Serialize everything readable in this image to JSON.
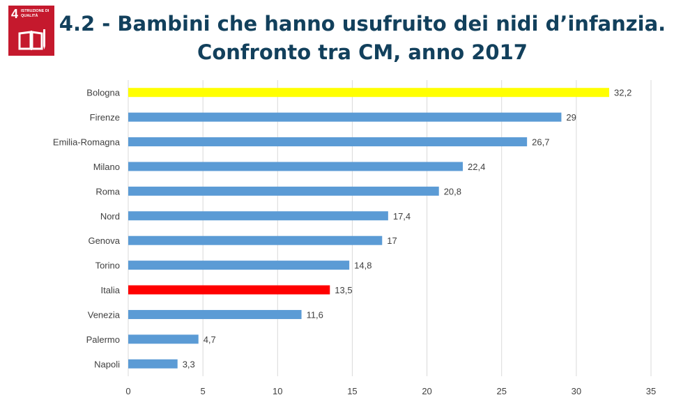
{
  "badge": {
    "number": "4",
    "text": "ISTRUZIONE DI QUALITÀ",
    "color": "#c5192d",
    "icon": "book-pencil-icon"
  },
  "title_line1": "4.2 - Bambini che hanno usufruito dei nidi d’infanzia.",
  "title_line2": "Confronto tra CM, anno 2017",
  "chart_data": {
    "type": "bar",
    "orientation": "horizontal",
    "categories": [
      "Bologna",
      "Firenze",
      "Emilia-Romagna",
      "Milano",
      "Roma",
      "Nord",
      "Genova",
      "Torino",
      "Italia",
      "Venezia",
      "Palermo",
      "Napoli"
    ],
    "values": [
      32.2,
      29,
      26.7,
      22.4,
      20.8,
      17.4,
      17,
      14.8,
      13.5,
      11.6,
      4.7,
      3.3
    ],
    "value_labels": [
      "32,2",
      "29",
      "26,7",
      "22,4",
      "20,8",
      "17,4",
      "17",
      "14,8",
      "13,5",
      "11,6",
      "4,7",
      "3,3"
    ],
    "bar_colors": [
      "#ffff00",
      "#5b9bd5",
      "#5b9bd5",
      "#5b9bd5",
      "#5b9bd5",
      "#5b9bd5",
      "#5b9bd5",
      "#5b9bd5",
      "#ff0000",
      "#5b9bd5",
      "#5b9bd5",
      "#5b9bd5"
    ],
    "xlim": [
      0,
      35
    ],
    "xticks": [
      0,
      5,
      10,
      15,
      20,
      25,
      30,
      35
    ],
    "grid": true,
    "legend": "none",
    "xlabel": "",
    "ylabel": ""
  }
}
